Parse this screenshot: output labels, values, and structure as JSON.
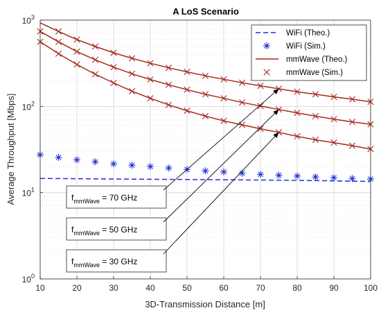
{
  "chart_data": {
    "type": "line",
    "title": "A LoS Scenario",
    "xlabel": "3D-Transmission Distance [m]",
    "ylabel": "Average Throughput [Mbps]",
    "xlim": [
      10,
      100
    ],
    "ylim": [
      1,
      1000
    ],
    "yscale": "log",
    "grid": true,
    "minor_grid": true,
    "legend_placement": "top-right",
    "xticks": [
      10,
      20,
      30,
      40,
      50,
      60,
      70,
      80,
      90,
      100
    ],
    "yticks": [
      {
        "value": 1,
        "base": "10",
        "exp": "0"
      },
      {
        "value": 10,
        "base": "10",
        "exp": "1"
      },
      {
        "value": 100,
        "base": "10",
        "exp": "2"
      },
      {
        "value": 1000,
        "base": "10",
        "exp": "3"
      }
    ],
    "legend": [
      {
        "label": "WiFi (Theo.)",
        "marker": "dash-line",
        "color": "#1f2fd6"
      },
      {
        "label": "WiFi (Sim.)",
        "marker": "asterisk",
        "color": "#1f2fd6"
      },
      {
        "label": "mmWave (Theo.)",
        "marker": "solid-line",
        "color": "#a52a1a"
      },
      {
        "label": "mmWave (Sim.)",
        "marker": "cross",
        "color": "#a52a1a"
      }
    ],
    "series": [
      {
        "name": "WiFi (Theo.)",
        "kind": "dashed-line",
        "color": "#1f2fd6",
        "x": [
          10,
          20,
          30,
          40,
          50,
          60,
          70,
          80,
          90,
          100
        ],
        "y": [
          14.6,
          14.5,
          14.4,
          14.3,
          14.2,
          14.1,
          14.0,
          13.9,
          13.7,
          13.5
        ]
      },
      {
        "name": "WiFi (Sim.)",
        "kind": "asterisk-markers",
        "color": "#1f2fd6",
        "x": [
          10,
          15,
          20,
          25,
          30,
          35,
          40,
          45,
          50,
          55,
          60,
          65,
          70,
          75,
          80,
          85,
          90,
          95,
          100
        ],
        "y": [
          27.5,
          25.6,
          24.0,
          22.8,
          21.6,
          20.8,
          20.1,
          19.3,
          18.6,
          17.9,
          17.4,
          16.8,
          16.3,
          15.9,
          15.6,
          15.2,
          14.9,
          14.6,
          14.4
        ]
      },
      {
        "name": "mmWave (Theo.) f=70 GHz",
        "kind": "solid-line",
        "color": "#a52a1a",
        "x": [
          10,
          15,
          20,
          25,
          30,
          35,
          40,
          45,
          50,
          55,
          60,
          65,
          70,
          75,
          80,
          85,
          90,
          95,
          100
        ],
        "y": [
          930,
          740,
          595,
          495,
          418,
          361,
          316,
          280,
          251,
          226,
          206,
          188,
          173,
          160,
          148,
          138,
          129,
          121,
          113
        ]
      },
      {
        "name": "mmWave (Sim.) f=70 GHz",
        "kind": "cross-markers",
        "color": "#a52a1a",
        "x": [
          15,
          20,
          25,
          30,
          35,
          40,
          45,
          50,
          55,
          60,
          65,
          70,
          75,
          80,
          85,
          90,
          95,
          100
        ],
        "y": [
          740,
          595,
          495,
          418,
          361,
          316,
          280,
          251,
          226,
          206,
          188,
          173,
          160,
          148,
          138,
          129,
          121,
          113
        ]
      },
      {
        "name": "mmWave (Theo.) f=50 GHz",
        "kind": "solid-line",
        "color": "#a52a1a",
        "x": [
          10,
          15,
          20,
          25,
          30,
          35,
          40,
          45,
          50,
          55,
          60,
          65,
          70,
          75,
          80,
          85,
          90,
          95,
          100
        ],
        "y": [
          740,
          560,
          432,
          347,
          285,
          239,
          205,
          178,
          156,
          138,
          124,
          111,
          101,
          92,
          84,
          77,
          71,
          66,
          62
        ]
      },
      {
        "name": "mmWave (Sim.) f=50 GHz",
        "kind": "cross-markers",
        "color": "#a52a1a",
        "x": [
          10,
          15,
          20,
          25,
          30,
          35,
          40,
          45,
          50,
          55,
          60,
          65,
          70,
          75,
          80,
          85,
          90,
          95,
          100
        ],
        "y": [
          740,
          560,
          432,
          347,
          285,
          239,
          205,
          178,
          156,
          138,
          124,
          111,
          101,
          92,
          84,
          77,
          71,
          66,
          62
        ]
      },
      {
        "name": "mmWave (Theo.) f=30 GHz",
        "kind": "solid-line",
        "color": "#a52a1a",
        "x": [
          10,
          15,
          20,
          25,
          30,
          35,
          40,
          45,
          50,
          55,
          60,
          65,
          70,
          75,
          80,
          85,
          90,
          95,
          100
        ],
        "y": [
          560,
          408,
          306,
          236,
          187,
          150,
          124,
          104,
          89,
          77,
          68,
          61,
          55,
          50,
          45,
          41,
          38,
          35,
          32
        ]
      },
      {
        "name": "mmWave (Sim.) f=30 GHz",
        "kind": "cross-markers",
        "color": "#a52a1a",
        "x": [
          10,
          15,
          20,
          25,
          30,
          35,
          40,
          45,
          50,
          55,
          60,
          65,
          70,
          75,
          80,
          85,
          90,
          95,
          100
        ],
        "y": [
          560,
          408,
          306,
          236,
          187,
          150,
          124,
          104,
          89,
          77,
          68,
          61,
          55,
          50,
          45,
          41,
          38,
          35,
          32
        ]
      }
    ],
    "annotations": [
      {
        "prefix": "f",
        "subscript": "mmWave",
        "text": " = 70 GHz",
        "arrow_to": {
          "x": 75,
          "y": 160
        }
      },
      {
        "prefix": "f",
        "subscript": "mmWave",
        "text": " = 50 GHz",
        "arrow_to": {
          "x": 75,
          "y": 92
        }
      },
      {
        "prefix": "f",
        "subscript": "mmWave",
        "text": " = 30 GHz",
        "arrow_to": {
          "x": 75,
          "y": 50
        }
      }
    ]
  }
}
